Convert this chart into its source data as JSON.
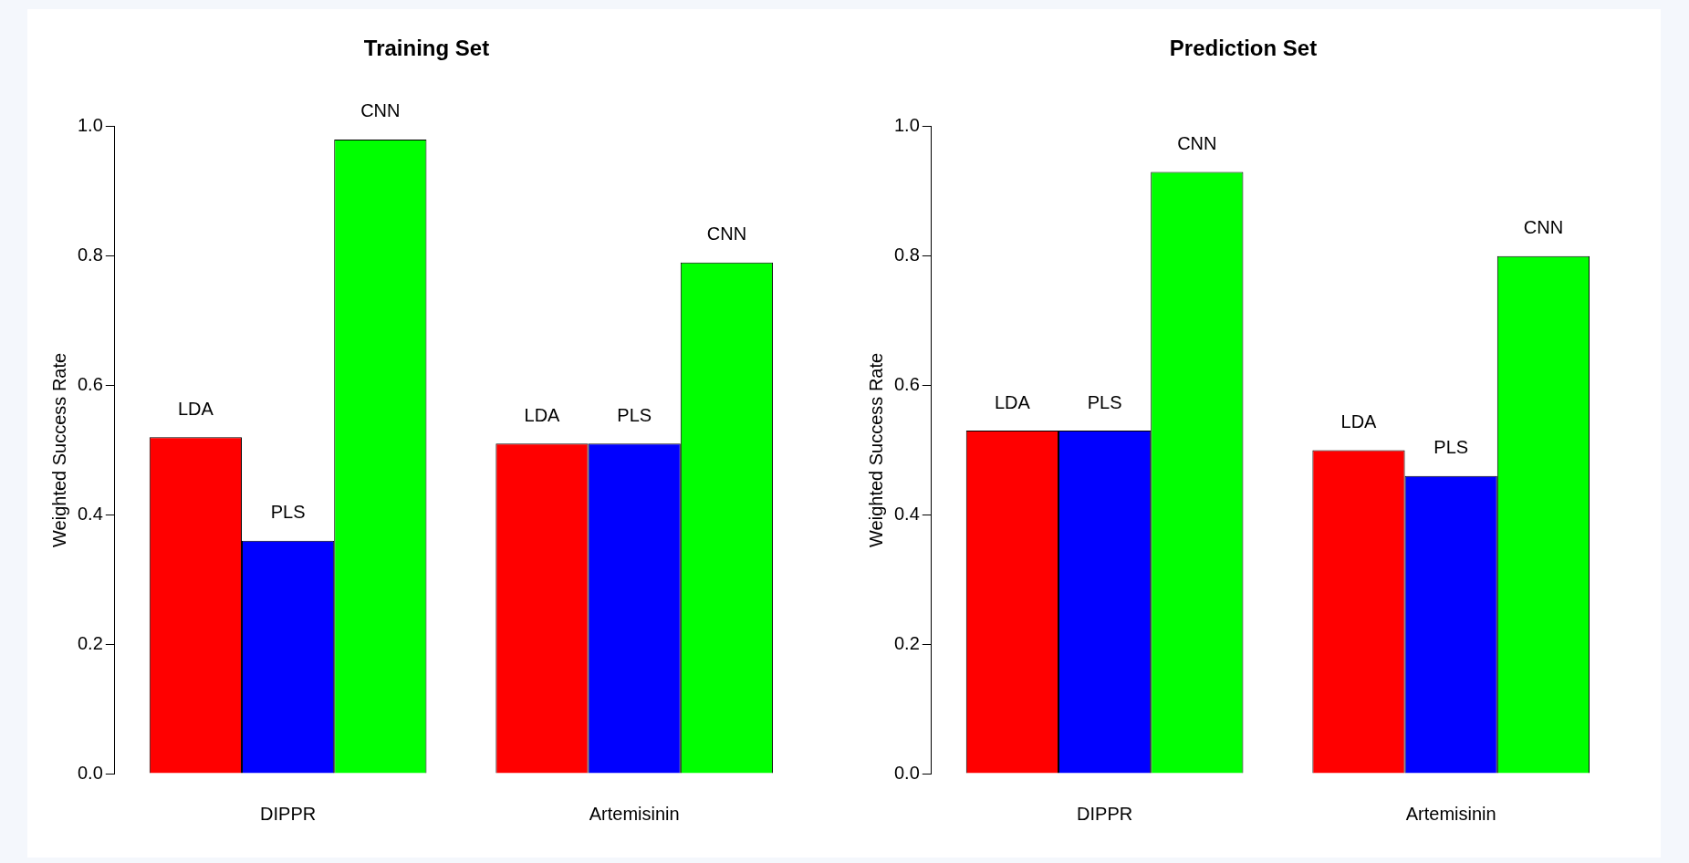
{
  "chart_data": [
    {
      "type": "bar",
      "title": "Training Set",
      "ylabel": "Weighted Success Rate",
      "categories": [
        "DIPPR",
        "Artemisinin"
      ],
      "series": [
        {
          "name": "LDA",
          "color": "#ff0000",
          "values": [
            0.52,
            0.51
          ]
        },
        {
          "name": "PLS",
          "color": "#0000ff",
          "values": [
            0.36,
            0.51
          ]
        },
        {
          "name": "CNN",
          "color": "#00ff00",
          "values": [
            0.98,
            0.79
          ]
        }
      ],
      "ylim": [
        0,
        1
      ],
      "yticks": [
        {
          "value": 0,
          "label": "0.0"
        },
        {
          "value": 0.2,
          "label": "0.2"
        },
        {
          "value": 0.4,
          "label": "0.4"
        },
        {
          "value": 0.6,
          "label": "0.6"
        },
        {
          "value": 0.8,
          "label": "0.8"
        },
        {
          "value": 1,
          "label": "1.0"
        }
      ],
      "grid": false,
      "legend": false
    },
    {
      "type": "bar",
      "title": "Prediction Set",
      "ylabel": "Weighted Success Rate",
      "categories": [
        "DIPPR",
        "Artemisinin"
      ],
      "series": [
        {
          "name": "LDA",
          "color": "#ff0000",
          "values": [
            0.53,
            0.5
          ]
        },
        {
          "name": "PLS",
          "color": "#0000ff",
          "values": [
            0.53,
            0.46
          ]
        },
        {
          "name": "CNN",
          "color": "#00ff00",
          "values": [
            0.93,
            0.8
          ]
        }
      ],
      "ylim": [
        0,
        1
      ],
      "yticks": [
        {
          "value": 0,
          "label": "0.0"
        },
        {
          "value": 0.2,
          "label": "0.2"
        },
        {
          "value": 0.4,
          "label": "0.4"
        },
        {
          "value": 0.6,
          "label": "0.6"
        },
        {
          "value": 0.8,
          "label": "0.8"
        },
        {
          "value": 1,
          "label": "1.0"
        }
      ],
      "grid": false,
      "legend": false
    }
  ]
}
